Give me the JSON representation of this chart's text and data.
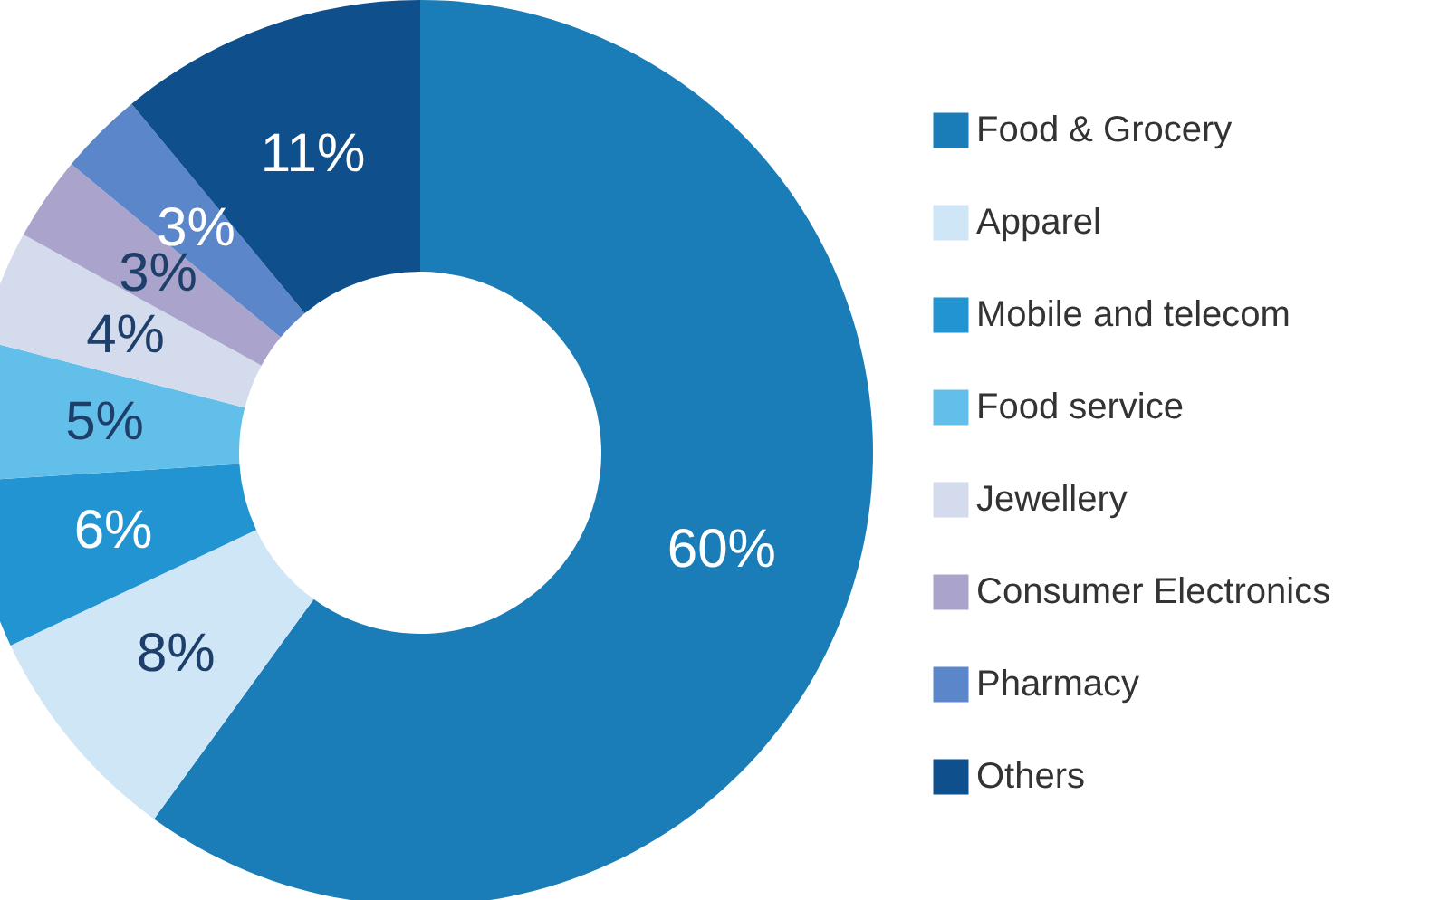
{
  "chart_data": {
    "type": "donut",
    "categories": [
      "Food & Grocery",
      "Apparel",
      "Mobile and telecom",
      "Food service",
      "Jewellery",
      "Consumer Electronics",
      "Pharmacy",
      "Others"
    ],
    "values": [
      60,
      8,
      6,
      5,
      4,
      3,
      3,
      11
    ],
    "colors": [
      "#1a7db8",
      "#cfe6f6",
      "#2394d2",
      "#62bfe9",
      "#d3dbec",
      "#aaa4cc",
      "#5b86c9",
      "#0f4f8c"
    ],
    "value_labels": [
      "60%",
      "8%",
      "6%",
      "5%",
      "4%",
      "3%",
      "3%",
      "11%"
    ],
    "legend": "right"
  }
}
